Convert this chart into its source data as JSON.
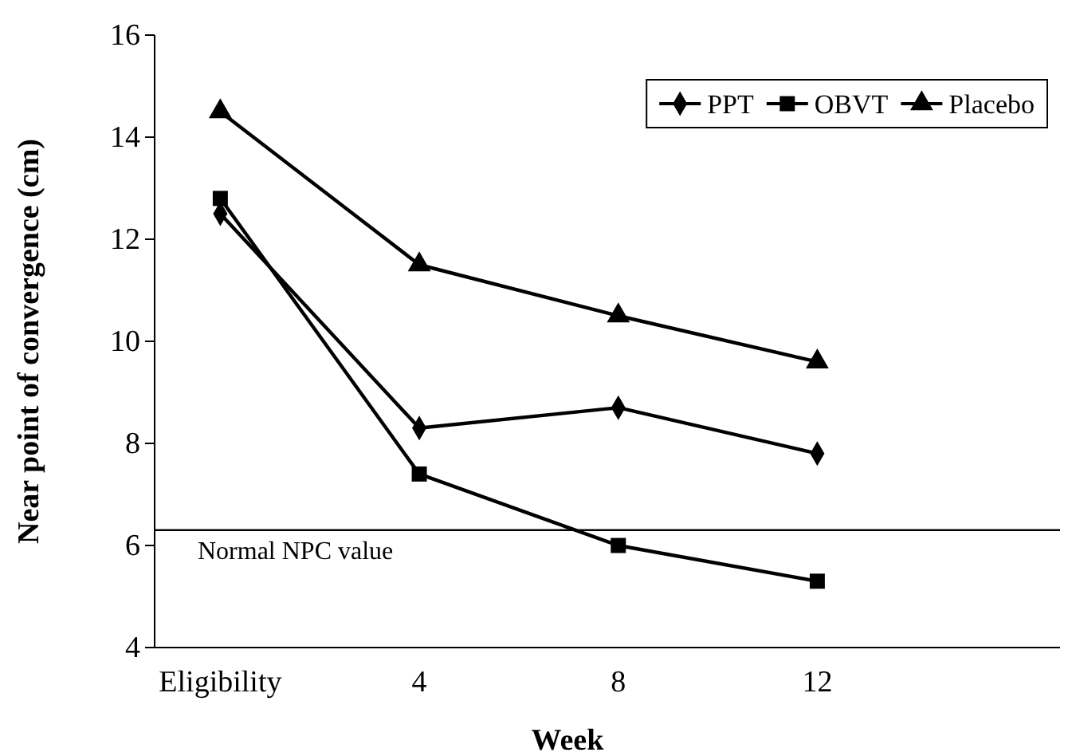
{
  "chart_data": {
    "type": "line",
    "xlabel": "Week",
    "ylabel": "Near point of convergence (cm)",
    "categories": [
      "Eligibility",
      "4",
      "8",
      "12"
    ],
    "ylim": [
      4,
      16
    ],
    "yticks": [
      4,
      6,
      8,
      10,
      12,
      14,
      16
    ],
    "grid": false,
    "legend": "top right",
    "line_style": "solid",
    "series": [
      {
        "name": "PPT",
        "color": "#000000",
        "marker": "diamond",
        "values": [
          12.5,
          8.3,
          8.7,
          7.8
        ]
      },
      {
        "name": "OBVT",
        "color": "#000000",
        "marker": "square",
        "values": [
          12.8,
          7.4,
          6.0,
          5.3
        ]
      },
      {
        "name": "Placebo",
        "color": "#000000",
        "marker": "triangle",
        "values": [
          14.5,
          11.5,
          10.5,
          9.6
        ]
      }
    ],
    "ref_lines": [
      {
        "axis": "y",
        "value": 6.3,
        "label": "Normal NPC value",
        "color": "#000000"
      }
    ]
  }
}
